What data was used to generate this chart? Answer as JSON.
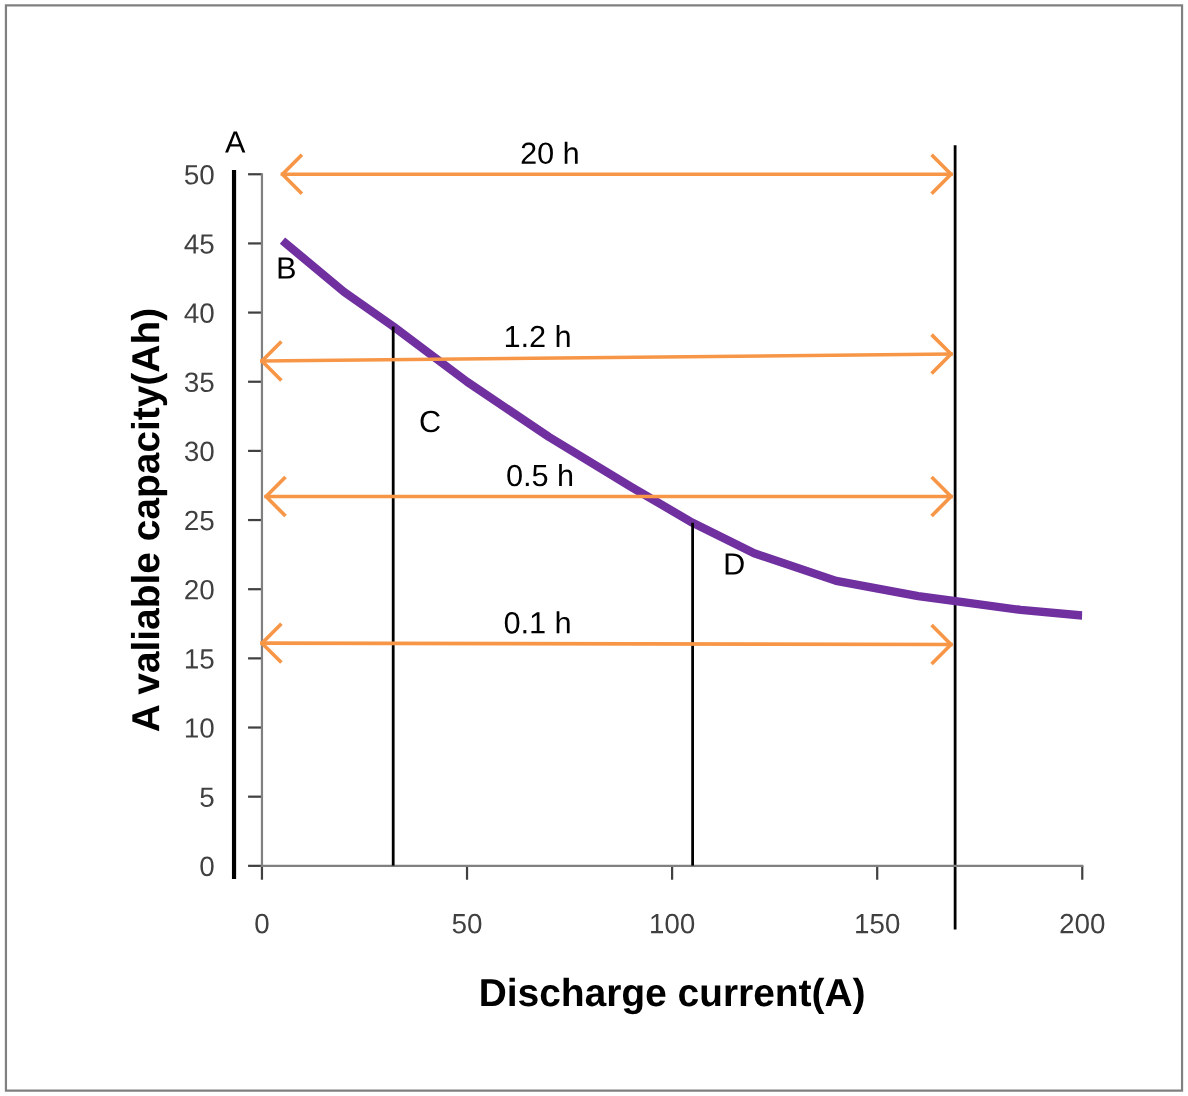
{
  "chart_data": {
    "type": "line",
    "xlabel": "Discharge current(A)",
    "ylabel": "A valiable capacity(Ah)",
    "xlim": [
      0,
      200
    ],
    "xticks": [
      0,
      50,
      100,
      150,
      200
    ],
    "ylim": [
      0,
      50
    ],
    "yticks": [
      0,
      5,
      10,
      15,
      20,
      25,
      30,
      35,
      40,
      45,
      50
    ],
    "grid": false,
    "legend": false,
    "marker": "none",
    "line_style": "solid",
    "series": [
      {
        "color": "#7030a0",
        "x": [
          5,
          20,
          32,
          50,
          70,
          90,
          105,
          120,
          140,
          160,
          170,
          185,
          200
        ],
        "values": [
          45.2,
          41.5,
          39,
          35,
          31,
          27.4,
          24.8,
          22.6,
          20.6,
          19.5,
          19.1,
          18.5,
          18.1
        ]
      },
      {
        "type": "line",
        "color": "#000000",
        "x": [
          32,
          32
        ],
        "values": [
          0,
          39
        ]
      },
      {
        "type": "line",
        "color": "#000000",
        "x": [
          105,
          105
        ],
        "values": [
          0,
          24.8
        ]
      },
      {
        "type": "line",
        "name": "20 h",
        "color": "#f79646",
        "x": [
          5,
          168
        ],
        "values": [
          50,
          50
        ]
      },
      {
        "type": "line",
        "name": "1.2 h",
        "color": "#f79646",
        "x": [
          0,
          168
        ],
        "values": [
          36.5,
          37
        ]
      },
      {
        "type": "line",
        "name": "0.5 h",
        "color": "#f79646",
        "x": [
          1,
          168
        ],
        "values": [
          26.7,
          26.7
        ]
      },
      {
        "type": "line",
        "name": "0.1 h",
        "color": "#f79646",
        "x": [
          0,
          168
        ],
        "values": [
          16.1,
          16
        ]
      }
    ],
    "ref_lines": [
      {
        "axis": "x",
        "value": 169,
        "color": "#000000"
      }
    ],
    "annotations": [
      "A",
      "B",
      "C",
      "D"
    ]
  }
}
